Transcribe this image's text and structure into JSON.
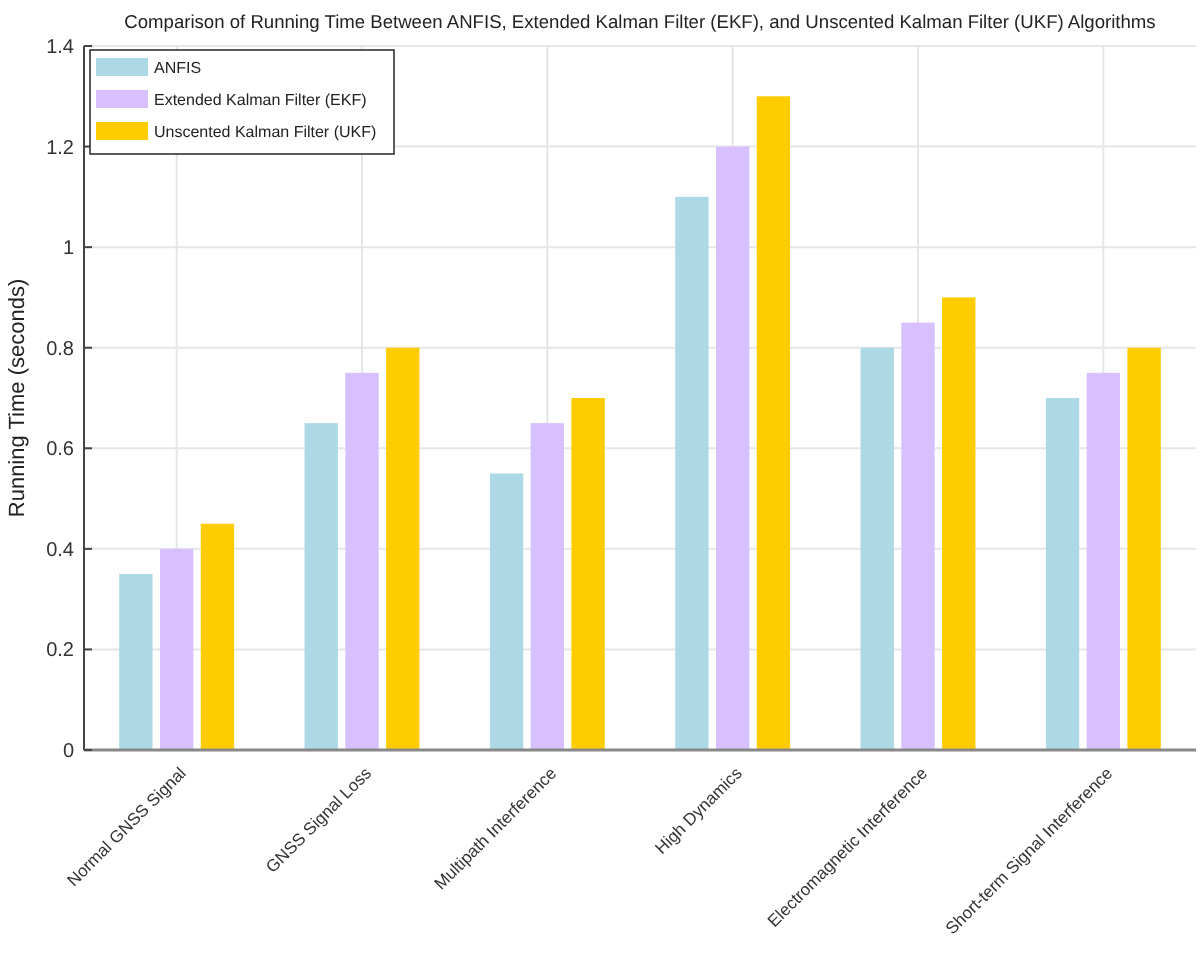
{
  "chart_data": {
    "type": "bar",
    "title": "Comparison of Running Time Between ANFIS, Extended Kalman Filter (EKF), and Unscented Kalman Filter (UKF) Algorithms",
    "ylabel": "Running Time (seconds)",
    "categories": [
      "Normal GNSS Signal",
      "GNSS Signal Loss",
      "Multipath Interference",
      "High Dynamics",
      "Electromagnetic Interference",
      "Short-term Signal Interference"
    ],
    "series": [
      {
        "name": "ANFIS",
        "color": "#add8e6",
        "values": [
          0.35,
          0.65,
          0.55,
          1.1,
          0.8,
          0.7
        ]
      },
      {
        "name": "Extended Kalman Filter (EKF)",
        "color": "#d8bfff",
        "values": [
          0.4,
          0.75,
          0.65,
          1.2,
          0.85,
          0.75
        ]
      },
      {
        "name": "Unscented Kalman Filter (UKF)",
        "color": "#ffcc00",
        "values": [
          0.45,
          0.8,
          0.7,
          1.3,
          0.9,
          0.8
        ]
      }
    ],
    "ylim": [
      0,
      1.4
    ],
    "yticks": [
      0,
      0.2,
      0.4,
      0.6,
      0.8,
      1,
      1.2,
      1.4
    ],
    "grid": true,
    "legend": "top left"
  }
}
